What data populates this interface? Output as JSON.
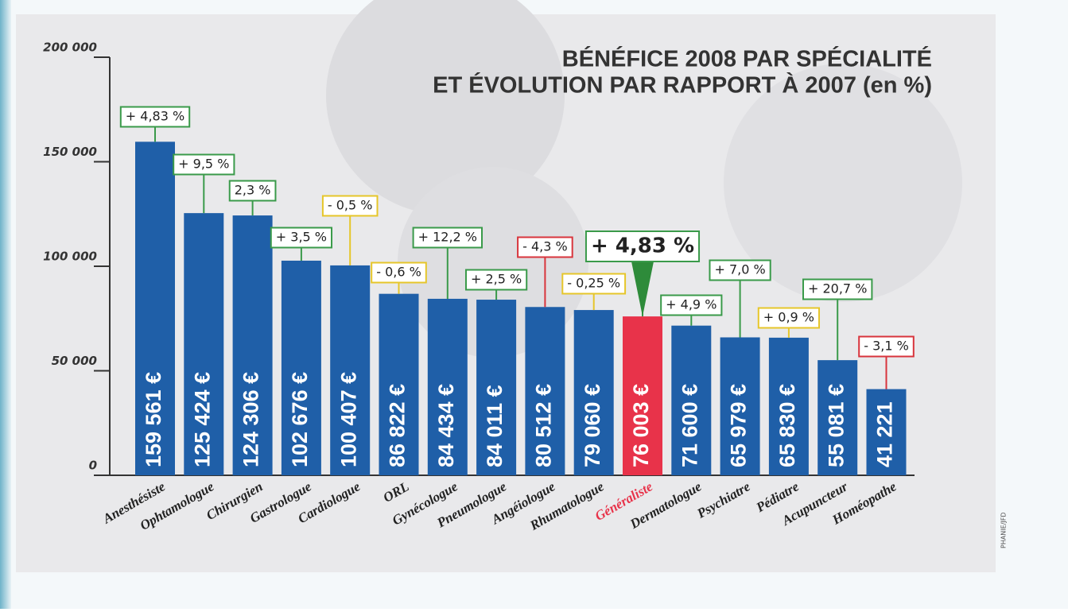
{
  "chart_data": {
    "type": "bar",
    "title": [
      "BÉNÉFICE 2008 PAR SPÉCIALITÉ",
      "ET ÉVOLUTION PAR RAPPORT À 2007 (en %)"
    ],
    "categories": [
      "Anesthésiste",
      "Ophtamologue",
      "Chirurgien",
      "Gastrologue",
      "Cardiologue",
      "ORL",
      "Gynécologue",
      "Pneumologue",
      "Angéiologue",
      "Rhumatologue",
      "Généraliste",
      "Dermatologue",
      "Psychiatre",
      "Pédiatre",
      "Acupuncteur",
      "Homéopathe"
    ],
    "values": [
      159561,
      125424,
      124306,
      102676,
      100407,
      86822,
      84434,
      84011,
      80512,
      79060,
      76003,
      71600,
      65979,
      65830,
      55081,
      41221
    ],
    "value_labels": [
      "159 561 €",
      "125 424 €",
      "124 306 €",
      "102 676 €",
      "100 407 €",
      "86 822 €",
      "84 434 €",
      "84 011 €",
      "80 512 €",
      "79 060 €",
      "76 003 €",
      "71 600 €",
      "65 979 €",
      "65 830 €",
      "55 081 €",
      "41 221"
    ],
    "colors": [
      "#1f5fa8",
      "#1f5fa8",
      "#1f5fa8",
      "#1f5fa8",
      "#1f5fa8",
      "#1f5fa8",
      "#1f5fa8",
      "#1f5fa8",
      "#1f5fa8",
      "#1f5fa8",
      "#e8334a",
      "#1f5fa8",
      "#1f5fa8",
      "#1f5fa8",
      "#1f5fa8",
      "#1f5fa8"
    ],
    "annotations": [
      "+ 4,83 %",
      "+ 9,5 %",
      "2,3 %",
      "+ 3,5 %",
      "- 0,5 %",
      "- 0,6 %",
      "+ 12,2 %",
      "+ 2,5 %",
      "- 4,3 %",
      "- 0,25 %",
      "+ 4,83 %",
      "+ 4,9 %",
      "+ 7,0 %",
      "+ 0,9 %",
      "+ 20,7 %",
      "- 3,1 %"
    ],
    "annotation_colors": [
      "#3a9a4a",
      "#3a9a4a",
      "#3a9a4a",
      "#3a9a4a",
      "#e6c62a",
      "#e6c62a",
      "#3a9a4a",
      "#3a9a4a",
      "#d8343c",
      "#e6c62a",
      "#3a9a4a",
      "#3a9a4a",
      "#3a9a4a",
      "#e6c62a",
      "#3a9a4a",
      "#d8343c"
    ],
    "ylim": [
      0,
      200000
    ],
    "yticks": [
      0,
      {
        "value": 50000,
        "label": "50 000"
      },
      {
        "value": 100000,
        "label": "100 000"
      },
      {
        "value": 150000,
        "label": "150 000"
      },
      {
        "value": 200000,
        "label": "200 000"
      }
    ],
    "credit": "PHANIE/JFD"
  }
}
